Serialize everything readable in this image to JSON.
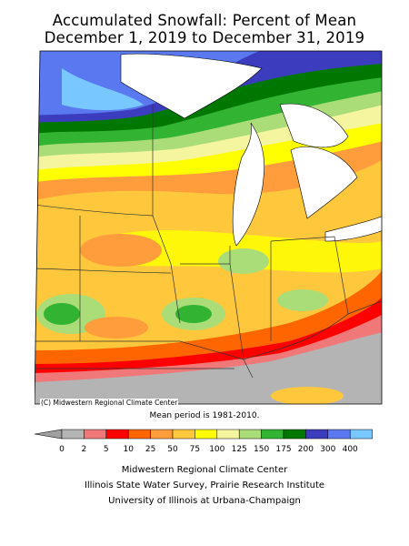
{
  "title_line1": "Accumulated Snowfall: Percent of Mean",
  "title_line2": "December 1, 2019 to December 31, 2019",
  "map_credit": "(C) Midwestern Regional Climate Center",
  "mean_period": "Mean period is 1981-2010.",
  "legend": {
    "labels": [
      "0",
      "2",
      "5",
      "10",
      "25",
      "50",
      "75",
      "100",
      "125",
      "150",
      "175",
      "200",
      "300",
      "400"
    ],
    "colors": [
      "#b4b4b4",
      "#f07878",
      "#ff0000",
      "#ff6600",
      "#ff9d3c",
      "#ffc83c",
      "#ffff00",
      "#f5f5a0",
      "#aadc78",
      "#32b432",
      "#007800",
      "#3c3cbe",
      "#5a78f0",
      "#78c8ff"
    ],
    "below_color": "#a0a0a0"
  },
  "institutions": [
    "Midwestern Regional Climate Center",
    "Illinois State Water Survey, Prairie Research Institute",
    "University of Illinois at Urbana-Champaign"
  ]
}
